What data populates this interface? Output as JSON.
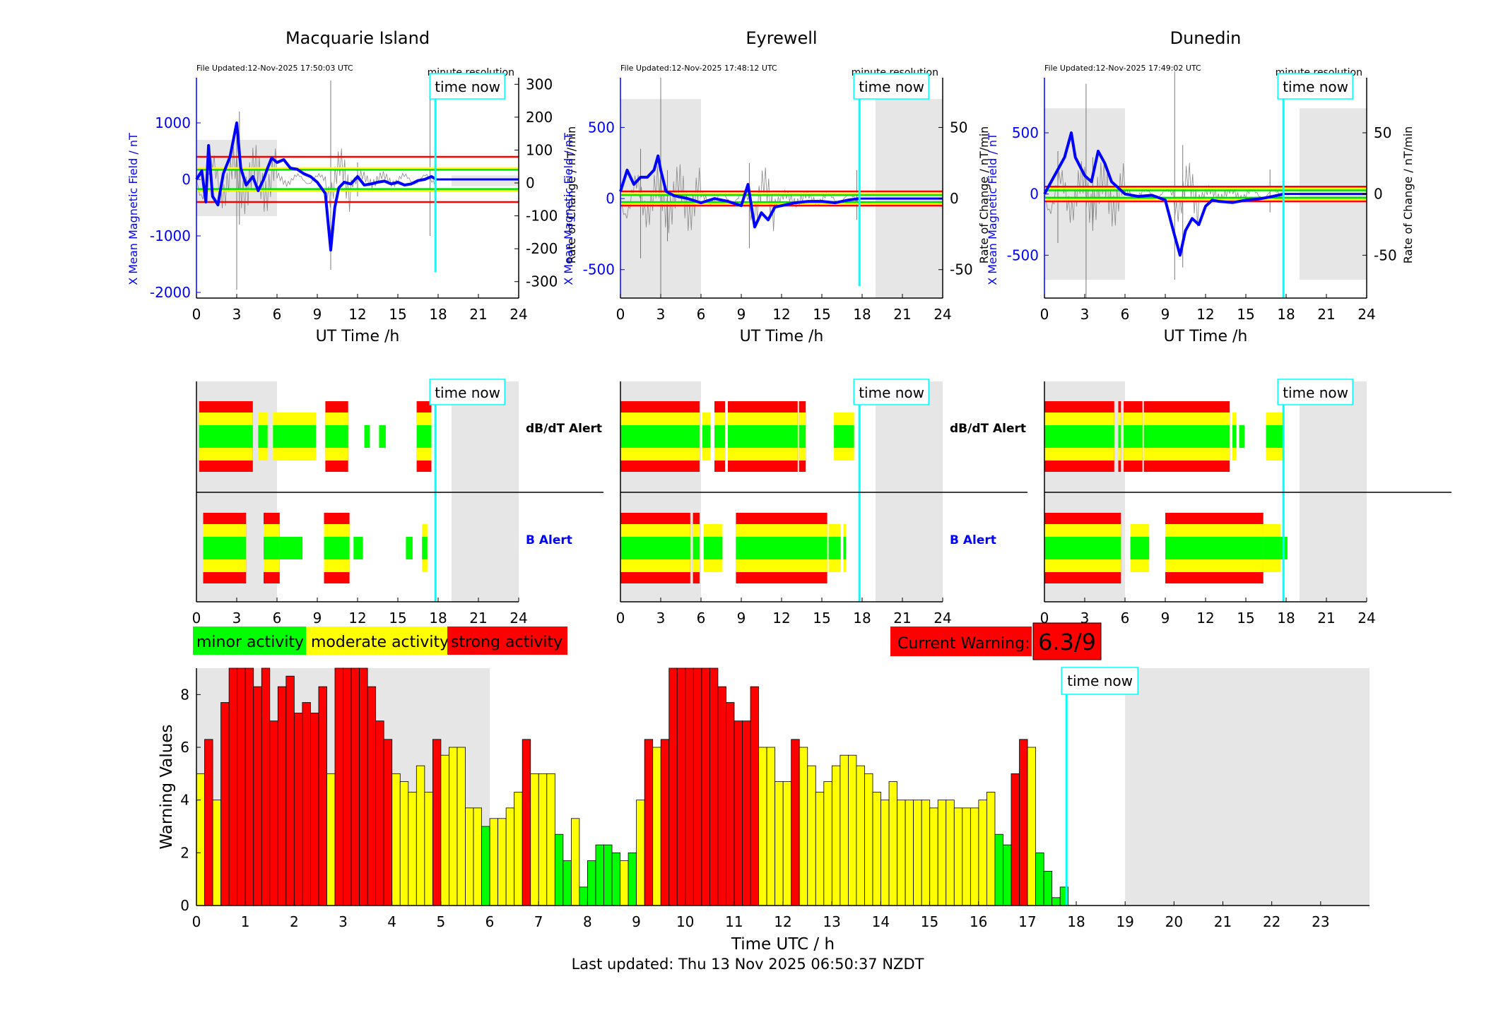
{
  "stations": [
    {
      "name": "Macquarie Island",
      "file_updated": "File Updated:12-Nov-2025 17:50:03 UTC",
      "minute_label": "minute resolution",
      "left_label": "X Mean Magnetic Field / nT",
      "right_label": "Rate of Change / nT/min",
      "left_ticks": [
        1000,
        0,
        -1000,
        -2000
      ],
      "right_ticks": [
        300,
        200,
        100,
        0,
        -100,
        -200,
        -300
      ],
      "ylim": [
        -2100,
        1800
      ],
      "rlim": [
        -350,
        320
      ],
      "shade_left": [
        -650,
        700
      ],
      "shade_right": [
        -120,
        70
      ],
      "thresholds": [
        {
          "v": 400,
          "c": "#ff0000"
        },
        {
          "v": -400,
          "c": "#ff0000"
        },
        {
          "v": 200,
          "c": "#ffff00"
        },
        {
          "v": -200,
          "c": "#ffff00"
        },
        {
          "v": 170,
          "c": "#00e000"
        },
        {
          "v": -170,
          "c": "#00e000"
        }
      ],
      "spikes": [
        [
          3,
          -1950,
          900
        ],
        [
          3.2,
          -800,
          1200
        ],
        [
          10,
          -1600,
          1750
        ],
        [
          12,
          -300,
          300
        ],
        [
          17.4,
          -1000,
          1600
        ]
      ],
      "series": [
        [
          0,
          0
        ],
        [
          0.4,
          150
        ],
        [
          0.7,
          -400
        ],
        [
          0.9,
          600
        ],
        [
          1.2,
          -300
        ],
        [
          1.6,
          -450
        ],
        [
          2,
          100
        ],
        [
          2.5,
          400
        ],
        [
          3,
          1000
        ],
        [
          3.3,
          200
        ],
        [
          3.7,
          -100
        ],
        [
          4.2,
          50
        ],
        [
          4.6,
          -200
        ],
        [
          5,
          0
        ],
        [
          5.3,
          200
        ],
        [
          5.6,
          380
        ],
        [
          6,
          300
        ],
        [
          6.5,
          350
        ],
        [
          7,
          200
        ],
        [
          7.5,
          180
        ],
        [
          8,
          100
        ],
        [
          8.5,
          50
        ],
        [
          9,
          -50
        ],
        [
          9.6,
          -250
        ],
        [
          10,
          -1250
        ],
        [
          10.3,
          -500
        ],
        [
          10.6,
          -150
        ],
        [
          11,
          -50
        ],
        [
          11.5,
          -80
        ],
        [
          12,
          50
        ],
        [
          12.5,
          -100
        ],
        [
          13,
          -80
        ],
        [
          13.5,
          -50
        ],
        [
          14,
          -30
        ],
        [
          14.5,
          -80
        ],
        [
          15,
          -50
        ],
        [
          15.5,
          -100
        ],
        [
          16,
          -80
        ],
        [
          16.5,
          -20
        ],
        [
          17,
          0
        ],
        [
          17.5,
          50
        ],
        [
          17.8,
          10
        ]
      ]
    },
    {
      "name": "Eyrewell",
      "file_updated": "File Updated:12-Nov-2025 17:48:12 UTC",
      "minute_label": "minute resolution",
      "left_label": "X Mean Magnetic Field / nT",
      "right_label": "Rate of Change / nT/min",
      "left_ticks": [
        500,
        0,
        -500
      ],
      "right_ticks": [
        50,
        0,
        -50
      ],
      "ylim": [
        -700,
        850
      ],
      "rlim": [
        -70,
        85
      ],
      "shade_left": [
        -700,
        700
      ],
      "shade_right": [
        -700,
        700
      ],
      "thresholds": [
        {
          "v": 50,
          "c": "#ff0000"
        },
        {
          "v": -50,
          "c": "#ff0000"
        },
        {
          "v": 35,
          "c": "#ffff00"
        },
        {
          "v": -35,
          "c": "#ffff00"
        },
        {
          "v": 25,
          "c": "#00e000"
        },
        {
          "v": -25,
          "c": "#00e000"
        }
      ],
      "spikes": [
        [
          1.5,
          -420,
          350
        ],
        [
          3,
          -680,
          850
        ],
        [
          3.5,
          -300,
          200
        ],
        [
          9.6,
          -350,
          250
        ],
        [
          17.6,
          -150,
          200
        ]
      ],
      "series": [
        [
          0,
          50
        ],
        [
          0.5,
          200
        ],
        [
          1,
          100
        ],
        [
          1.5,
          150
        ],
        [
          2,
          150
        ],
        [
          2.5,
          200
        ],
        [
          2.8,
          300
        ],
        [
          3,
          200
        ],
        [
          3.4,
          50
        ],
        [
          4,
          20
        ],
        [
          5,
          0
        ],
        [
          6,
          -30
        ],
        [
          7,
          0
        ],
        [
          8,
          -20
        ],
        [
          9,
          -50
        ],
        [
          9.5,
          100
        ],
        [
          10,
          -200
        ],
        [
          10.5,
          -100
        ],
        [
          11,
          -150
        ],
        [
          11.5,
          -60
        ],
        [
          12,
          -50
        ],
        [
          13,
          -30
        ],
        [
          14,
          -20
        ],
        [
          15,
          -20
        ],
        [
          16,
          -30
        ],
        [
          17,
          -10
        ],
        [
          17.8,
          0
        ]
      ]
    },
    {
      "name": "Dunedin",
      "file_updated": "File Updated:12-Nov-2025 17:49:02 UTC",
      "minute_label": "minute resolution",
      "left_label": "X Mean Magnetic Field / nT",
      "right_label": "Rate of Change / nT/min",
      "left_ticks": [
        500,
        0,
        -500
      ],
      "right_ticks": [
        50,
        0,
        -50
      ],
      "ylim": [
        -850,
        950
      ],
      "rlim": [
        -85,
        95
      ],
      "shade_left": [
        -700,
        700
      ],
      "shade_right": [
        -700,
        700
      ],
      "thresholds": [
        {
          "v": 60,
          "c": "#ff0000"
        },
        {
          "v": -60,
          "c": "#ff0000"
        },
        {
          "v": 45,
          "c": "#ffff00"
        },
        {
          "v": -45,
          "c": "#ffff00"
        },
        {
          "v": 30,
          "c": "#00e000"
        },
        {
          "v": -30,
          "c": "#00e000"
        }
      ],
      "spikes": [
        [
          1,
          -400,
          350
        ],
        [
          3.1,
          -850,
          900
        ],
        [
          3.6,
          -300,
          300
        ],
        [
          9.7,
          -700,
          1000
        ],
        [
          10.3,
          -600,
          400
        ],
        [
          16.8,
          -150,
          200
        ]
      ],
      "series": [
        [
          0,
          0
        ],
        [
          0.5,
          100
        ],
        [
          1,
          200
        ],
        [
          1.5,
          300
        ],
        [
          2,
          500
        ],
        [
          2.3,
          300
        ],
        [
          3,
          150
        ],
        [
          3.5,
          100
        ],
        [
          4,
          350
        ],
        [
          4.5,
          250
        ],
        [
          5,
          100
        ],
        [
          6,
          0
        ],
        [
          7,
          -20
        ],
        [
          8,
          -10
        ],
        [
          9,
          -50
        ],
        [
          9.6,
          -300
        ],
        [
          10.1,
          -500
        ],
        [
          10.5,
          -300
        ],
        [
          11,
          -200
        ],
        [
          11.5,
          -250
        ],
        [
          12,
          -100
        ],
        [
          12.5,
          -50
        ],
        [
          13,
          -60
        ],
        [
          14,
          -70
        ],
        [
          15,
          -50
        ],
        [
          16,
          -40
        ],
        [
          17,
          -20
        ],
        [
          17.8,
          0
        ]
      ]
    }
  ],
  "time_now_label": "time now",
  "time_now_h": 17.8,
  "x_ticks": [
    0,
    3,
    6,
    9,
    12,
    15,
    18,
    21,
    24
  ],
  "x_label": "UT Time /h",
  "alert_labels": {
    "dbdt": "dB/dT Alert",
    "b": "B Alert"
  },
  "dbdt_alert": [
    [
      [
        0.2,
        4.2,
        "s"
      ],
      [
        4.6,
        5.3,
        "m"
      ],
      [
        5.7,
        8.9,
        "m"
      ],
      [
        9.6,
        11.3,
        "s"
      ],
      [
        12.5,
        12.9,
        "g"
      ],
      [
        13.6,
        14.1,
        "g"
      ],
      [
        16.4,
        17.5,
        "s"
      ]
    ],
    [
      [
        0,
        5.9,
        "s"
      ],
      [
        6.1,
        6.7,
        "m"
      ],
      [
        7,
        7.8,
        "s"
      ],
      [
        8,
        13.2,
        "s"
      ],
      [
        13.3,
        13.8,
        "s"
      ],
      [
        15.9,
        17.4,
        "m"
      ]
    ],
    [
      [
        0,
        5.2,
        "s"
      ],
      [
        5.5,
        5.7,
        "s"
      ],
      [
        5.9,
        7.3,
        "s"
      ],
      [
        7.4,
        13.8,
        "s"
      ],
      [
        14,
        14.3,
        "m"
      ],
      [
        14.5,
        14.9,
        "g"
      ],
      [
        16.5,
        17.8,
        "m"
      ]
    ]
  ],
  "b_alert": [
    [
      [
        0.5,
        3.7,
        "s"
      ],
      [
        5,
        6.2,
        "s"
      ],
      [
        6.2,
        7.9,
        "g"
      ],
      [
        9.5,
        11.4,
        "s"
      ],
      [
        11.7,
        12.4,
        "g"
      ],
      [
        15.6,
        16.1,
        "g"
      ],
      [
        16.8,
        17.2,
        "m"
      ]
    ],
    [
      [
        0,
        5.2,
        "s"
      ],
      [
        5.4,
        5.9,
        "s"
      ],
      [
        6.2,
        7.6,
        "m"
      ],
      [
        8.6,
        15.4,
        "s"
      ],
      [
        15.5,
        16.4,
        "m"
      ],
      [
        16.6,
        16.8,
        "m"
      ]
    ],
    [
      [
        0,
        5.7,
        "s"
      ],
      [
        6.4,
        7.8,
        "m"
      ],
      [
        9,
        16.3,
        "s"
      ],
      [
        16.3,
        17.6,
        "m"
      ],
      [
        17.6,
        18.1,
        "g"
      ]
    ]
  ],
  "legend": {
    "minor": "minor activity",
    "moderate": "moderate activity",
    "strong": "strong activity"
  },
  "current_warning_label": "Current Warning:",
  "current_warning_value": "6.3/9",
  "last_updated": "Last updated: Thu 13 Nov 2025 06:50:37 NZDT",
  "colors": {
    "minor": "#00ff00",
    "moderate": "#ffff00",
    "strong": "#ff0000",
    "time_now": "#00ffff",
    "shade": "#e6e6e6",
    "field_line": "#0000ff"
  },
  "chart_data": {
    "type": "bar",
    "xlabel": "Time UTC / h",
    "ylabel": "Warning Values",
    "ylim": [
      0,
      9
    ],
    "x_ticks": [
      0,
      1,
      2,
      3,
      4,
      5,
      6,
      7,
      8,
      9,
      10,
      11,
      12,
      13,
      14,
      15,
      16,
      17,
      18,
      19,
      20,
      21,
      22,
      23
    ],
    "y_ticks": [
      0,
      2,
      4,
      6,
      8
    ],
    "bin_width_h": 0.1667,
    "values": [
      5,
      6.3,
      4,
      7.7,
      9,
      9,
      9,
      8.3,
      9,
      7,
      8.3,
      8.7,
      7.3,
      7.7,
      7.3,
      8.3,
      5,
      9,
      9,
      9,
      9,
      8.3,
      7,
      6.3,
      5,
      4.7,
      4.3,
      5.3,
      4.3,
      6.3,
      5.7,
      6,
      6,
      3.7,
      3.7,
      3,
      3.3,
      3.3,
      3.7,
      4.3,
      6.3,
      5,
      5,
      5,
      2.7,
      1.7,
      3.3,
      0.7,
      1.7,
      2.3,
      2.3,
      2,
      1.7,
      2,
      4,
      6.3,
      6,
      6.3,
      9,
      9,
      9,
      9,
      9,
      9,
      8.3,
      7.7,
      7,
      7,
      8.3,
      6,
      6,
      4.7,
      4.7,
      6.3,
      6,
      5.3,
      4.3,
      4.7,
      5.3,
      5.7,
      5.7,
      5.3,
      5,
      4.3,
      4,
      4.7,
      4,
      4,
      4,
      4,
      3.7,
      4,
      4,
      3.7,
      3.7,
      3.7,
      4,
      4.3,
      2.7,
      2.3,
      5,
      6.3,
      6,
      2,
      1.3,
      0.3,
      0.7
    ],
    "colors": [
      "m",
      "s",
      "m",
      "s",
      "s",
      "s",
      "s",
      "s",
      "s",
      "s",
      "s",
      "s",
      "s",
      "s",
      "s",
      "s",
      "m",
      "s",
      "s",
      "s",
      "s",
      "s",
      "s",
      "s",
      "m",
      "m",
      "m",
      "m",
      "m",
      "s",
      "m",
      "m",
      "m",
      "m",
      "m",
      "g",
      "m",
      "m",
      "m",
      "m",
      "s",
      "m",
      "m",
      "m",
      "g",
      "g",
      "m",
      "g",
      "g",
      "g",
      "g",
      "g",
      "m",
      "g",
      "m",
      "s",
      "m",
      "s",
      "s",
      "s",
      "s",
      "s",
      "s",
      "s",
      "s",
      "s",
      "s",
      "s",
      "s",
      "m",
      "m",
      "m",
      "m",
      "s",
      "m",
      "m",
      "m",
      "m",
      "m",
      "m",
      "m",
      "m",
      "m",
      "m",
      "m",
      "m",
      "m",
      "m",
      "m",
      "m",
      "m",
      "m",
      "m",
      "m",
      "m",
      "m",
      "m",
      "m",
      "g",
      "g",
      "s",
      "s",
      "m",
      "g",
      "g",
      "g",
      "g"
    ],
    "shade_range_h": [
      [
        0,
        6
      ],
      [
        19,
        24
      ]
    ]
  }
}
